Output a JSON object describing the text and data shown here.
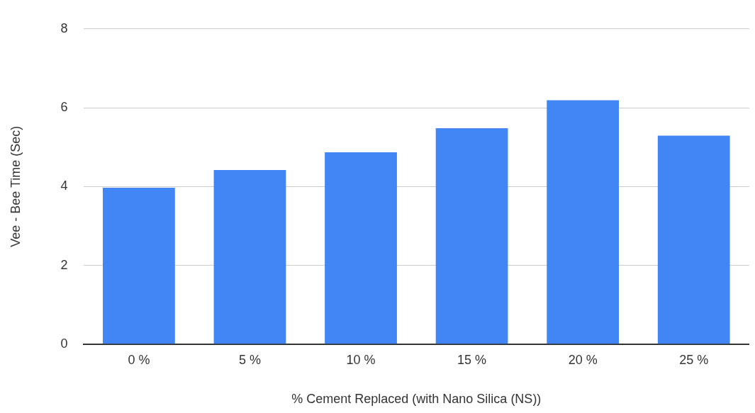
{
  "chart_data": {
    "type": "bar",
    "xlabel": "% Cement Replaced (with Nano Silica (NS))",
    "ylabel": "Vee - Bee Time (Sec)",
    "categories": [
      "0 %",
      "5 %",
      "10 %",
      "15 %",
      "20 %",
      "25 %"
    ],
    "values": [
      3.97,
      4.42,
      4.87,
      5.48,
      6.19,
      5.29
    ],
    "color": "#4285f4",
    "ylim": [
      0,
      8
    ],
    "yticks": [
      0,
      2,
      4,
      6,
      8
    ],
    "grid": "y",
    "legend": false
  }
}
